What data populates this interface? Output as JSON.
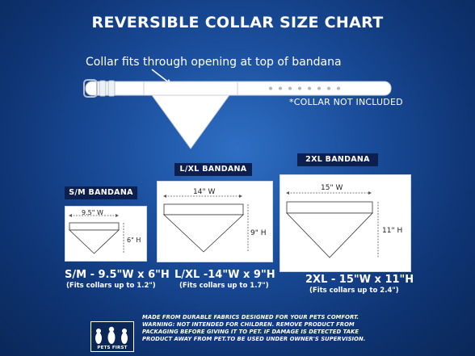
{
  "header": {
    "title": "REVERSIBLE COLLAR SIZE CHART"
  },
  "collar": {
    "note": "Collar fits through opening at top of bandana",
    "not_included": "*COLLAR NOT INCLUDED"
  },
  "sizes": [
    {
      "label": "S/M BANDANA",
      "width_label": "9.5\" W",
      "height_label": "6\" H",
      "summary": "S/M - 9.5\"W x 6\"H",
      "fit": "(Fits collars up to 1.2\")"
    },
    {
      "label": "L/XL BANDANA",
      "width_label": "14\" W",
      "height_label": "9\" H",
      "summary": "L/XL -14\"W x 9\"H",
      "fit": "(Fits collars up to 1.7\")"
    },
    {
      "label": "2XL BANDANA",
      "width_label": "15\" W",
      "height_label": "11\" H",
      "summary": "2XL - 15\"W x 11\"H",
      "fit": "(Fits collars up to 2.4\")"
    }
  ],
  "footer": {
    "lines": [
      "MADE FROM DURABLE FABRICS DESIGNED FOR YOUR PETS COMFORT.",
      "WARNING: NOT INTENDED FOR CHILDREN. REMOVE PRODUCT FROM",
      "PACKAGING BEFORE GIVING IT TO PET.  IF DAMAGE IS DETECTED TAKE",
      "PRODUCT AWAY FROM PET.TO BE USED UNDER OWNER'S SUPERVISION."
    ],
    "logo_text": "PETS FIRST"
  },
  "colors": {
    "background": "#1a4d9b",
    "label_pill": "#0c1f4e"
  }
}
